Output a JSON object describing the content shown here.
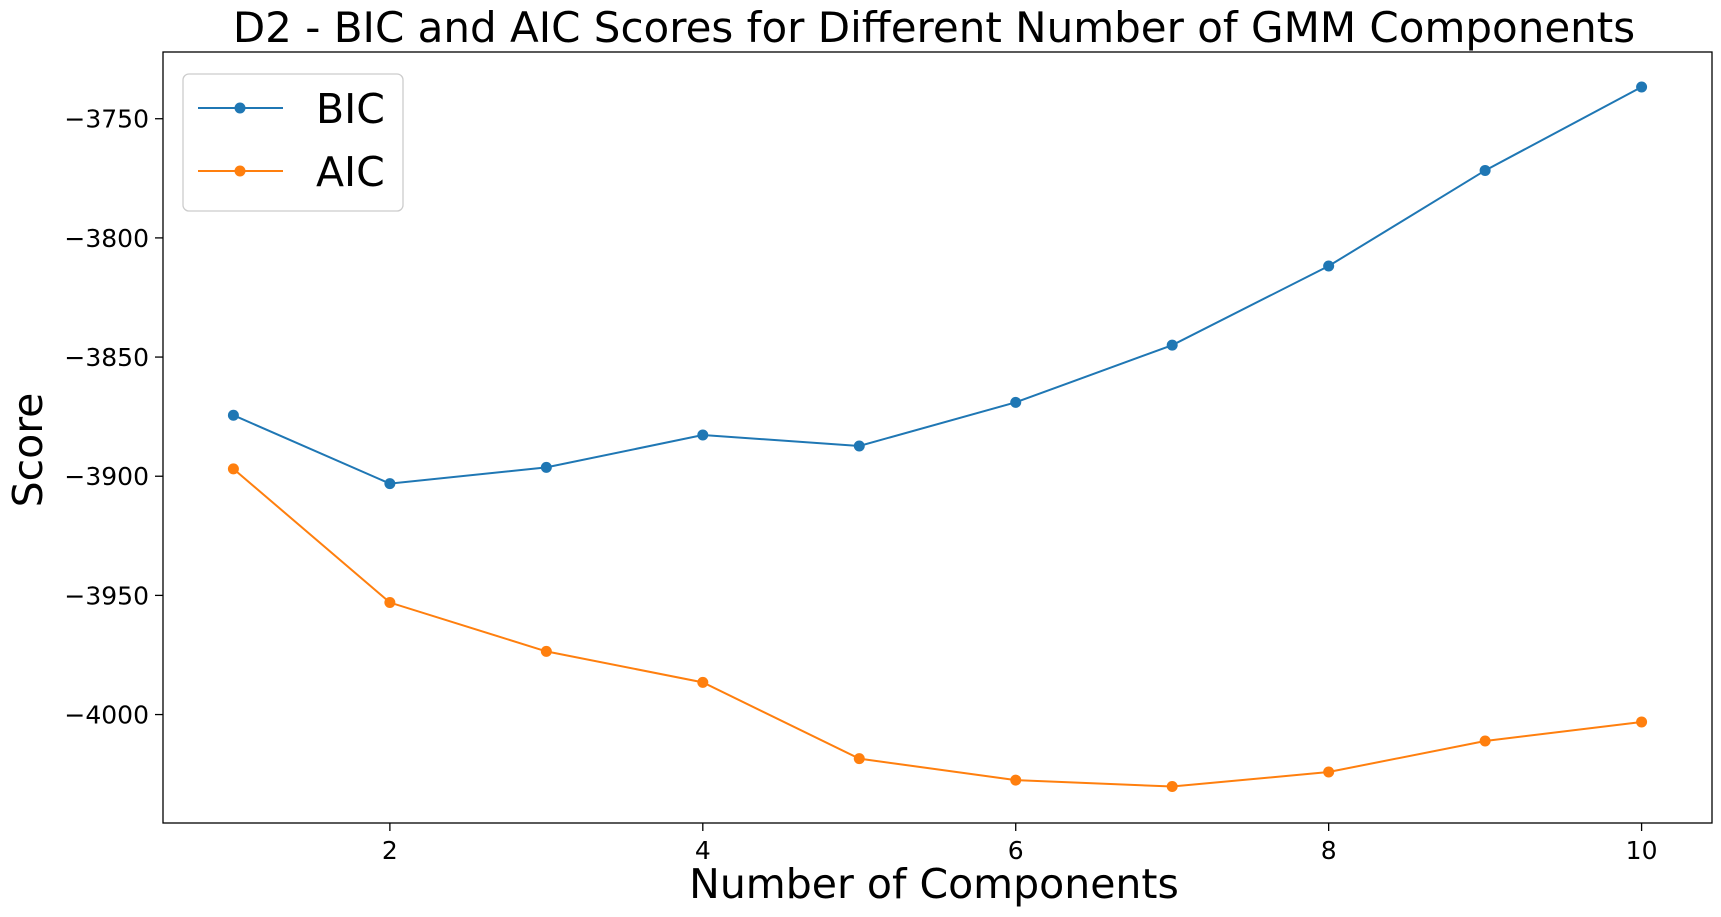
{
  "chart_data": {
    "type": "line",
    "title": "D2 - BIC and AIC Scores for Different Number of GMM Components",
    "xlabel": "Number of Components",
    "ylabel": "Score",
    "x": [
      1,
      2,
      3,
      4,
      5,
      6,
      7,
      8,
      9,
      10
    ],
    "xlim": [
      0.55,
      10.45
    ],
    "ylim": [
      -4045.5,
      -3722
    ],
    "xticks": [
      2,
      4,
      6,
      8,
      10
    ],
    "xtick_labels": [
      "2",
      "4",
      "6",
      "8",
      "10"
    ],
    "yticks": [
      -3750,
      -3800,
      -3850,
      -3900,
      -3950,
      -4000
    ],
    "ytick_labels": [
      "−3750",
      "−3800",
      "−3850",
      "−3900",
      "−3950",
      "−4000"
    ],
    "grid": false,
    "legend_position": "top-left",
    "series": [
      {
        "name": "BIC",
        "color": "#1f77b4",
        "marker": "circle",
        "values": [
          -3874.4,
          -3903.1,
          -3896.3,
          -3882.7,
          -3887.3,
          -3869.0,
          -3845.0,
          -3811.8,
          -3771.7,
          -3736.7
        ]
      },
      {
        "name": "AIC",
        "color": "#ff7f0e",
        "marker": "circle",
        "values": [
          -3896.9,
          -3953.0,
          -3973.5,
          -3986.5,
          -4018.5,
          -4027.5,
          -4030.2,
          -4024.1,
          -4011.1,
          -4003.1
        ]
      }
    ]
  }
}
